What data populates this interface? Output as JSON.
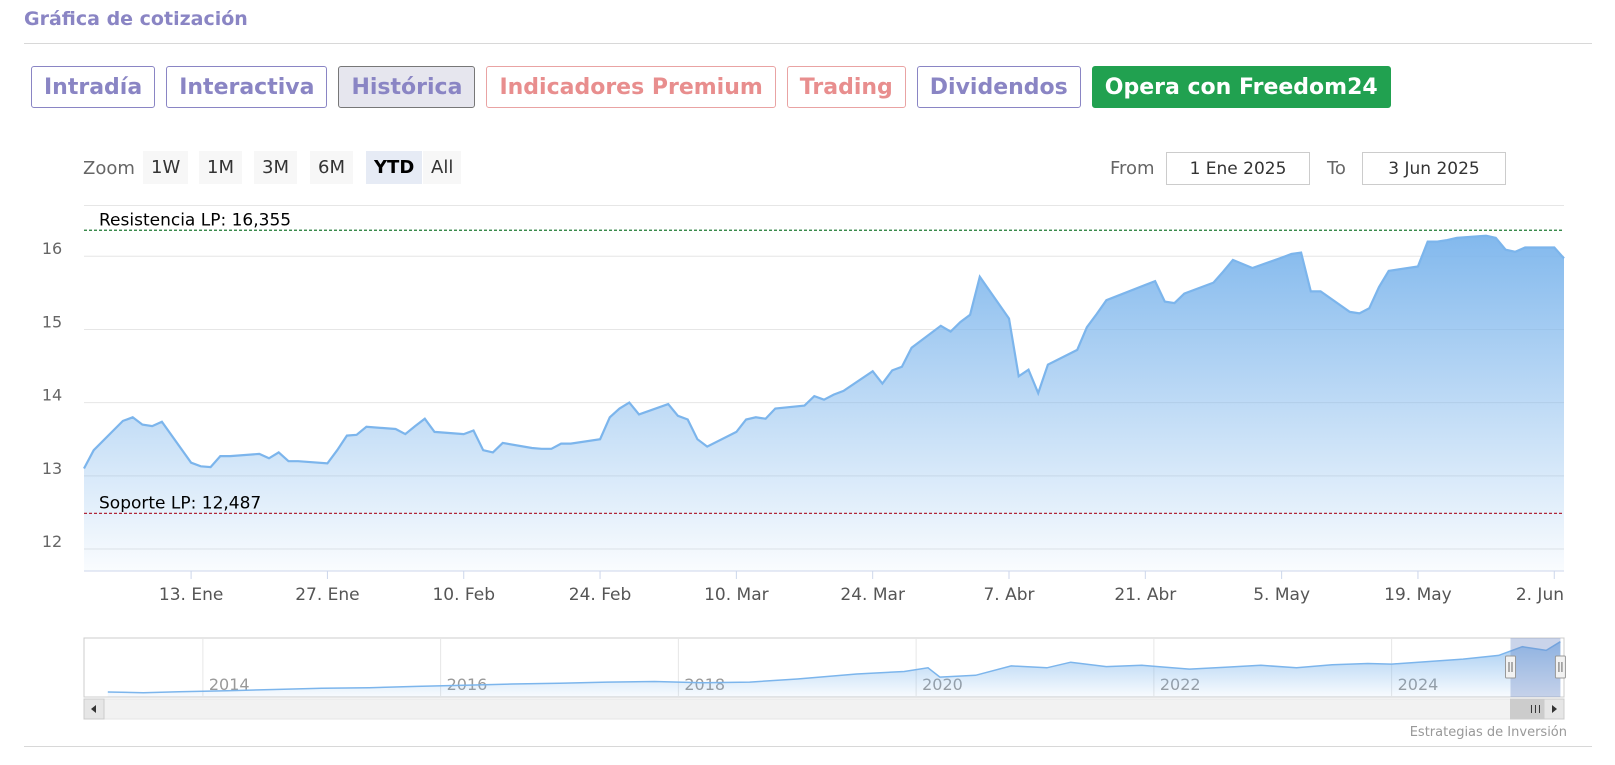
{
  "header": {
    "title": "Gráfica de cotización"
  },
  "tabs": [
    {
      "label": "Intradía",
      "style": "normal"
    },
    {
      "label": "Interactiva",
      "style": "normal"
    },
    {
      "label": "Histórica",
      "style": "active"
    },
    {
      "label": "Indicadores Premium",
      "style": "premium"
    },
    {
      "label": "Trading",
      "style": "premium"
    },
    {
      "label": "Dividendos",
      "style": "normal"
    },
    {
      "label": "Opera con Freedom24",
      "style": "cta"
    }
  ],
  "range_selector": {
    "zoom_label": "Zoom",
    "buttons": [
      "1W",
      "1M",
      "3M",
      "6M",
      "YTD",
      "All"
    ],
    "selected": "YTD",
    "from_label": "From",
    "from_value": "1 Ene 2025",
    "to_label": "To",
    "to_value": "3 Jun 2025"
  },
  "credit": "Estrategias de Inversión",
  "colors": {
    "accent": "#8a85c4",
    "cta": "#21a150",
    "premium": "#e88e8e",
    "series_line": "#7cb5ec",
    "resistance": "#1e7a33",
    "support": "#b0283a"
  },
  "chart_data": {
    "type": "area",
    "y_ticks": [
      12,
      13,
      14,
      15,
      16
    ],
    "ylim": [
      11.7,
      16.7
    ],
    "x_ticks": [
      {
        "label": "13. Ene",
        "date": "2025-01-13"
      },
      {
        "label": "27. Ene",
        "date": "2025-01-27"
      },
      {
        "label": "10. Feb",
        "date": "2025-02-10"
      },
      {
        "label": "24. Feb",
        "date": "2025-02-24"
      },
      {
        "label": "10. Mar",
        "date": "2025-03-10"
      },
      {
        "label": "24. Mar",
        "date": "2025-03-24"
      },
      {
        "label": "7. Abr",
        "date": "2025-04-07"
      },
      {
        "label": "21. Abr",
        "date": "2025-04-21"
      },
      {
        "label": "5. May",
        "date": "2025-05-05"
      },
      {
        "label": "19. May",
        "date": "2025-05-19"
      },
      {
        "label": "2. Jun",
        "date": "2025-06-02"
      }
    ],
    "xlim": [
      "2025-01-02",
      "2025-06-03"
    ],
    "grid": true,
    "series": [
      {
        "dates": [
          "2025-01-02",
          "2025-01-03",
          "2025-01-06",
          "2025-01-07",
          "2025-01-08",
          "2025-01-09",
          "2025-01-10",
          "2025-01-13",
          "2025-01-14",
          "2025-01-15",
          "2025-01-16",
          "2025-01-17",
          "2025-01-20",
          "2025-01-21",
          "2025-01-22",
          "2025-01-23",
          "2025-01-24",
          "2025-01-27",
          "2025-01-28",
          "2025-01-29",
          "2025-01-30",
          "2025-01-31",
          "2025-02-03",
          "2025-02-04",
          "2025-02-05",
          "2025-02-06",
          "2025-02-07",
          "2025-02-10",
          "2025-02-11",
          "2025-02-12",
          "2025-02-13",
          "2025-02-14",
          "2025-02-17",
          "2025-02-18",
          "2025-02-19",
          "2025-02-20",
          "2025-02-21",
          "2025-02-24",
          "2025-02-25",
          "2025-02-26",
          "2025-02-27",
          "2025-02-28",
          "2025-03-03",
          "2025-03-04",
          "2025-03-05",
          "2025-03-06",
          "2025-03-07",
          "2025-03-10",
          "2025-03-11",
          "2025-03-12",
          "2025-03-13",
          "2025-03-14",
          "2025-03-17",
          "2025-03-18",
          "2025-03-19",
          "2025-03-20",
          "2025-03-21",
          "2025-03-24",
          "2025-03-25",
          "2025-03-26",
          "2025-03-27",
          "2025-03-28",
          "2025-03-31",
          "2025-04-01",
          "2025-04-02",
          "2025-04-03",
          "2025-04-04",
          "2025-04-07",
          "2025-04-08",
          "2025-04-09",
          "2025-04-10",
          "2025-04-11",
          "2025-04-14",
          "2025-04-15",
          "2025-04-16",
          "2025-04-17",
          "2025-04-22",
          "2025-04-23",
          "2025-04-24",
          "2025-04-25",
          "2025-04-28",
          "2025-04-29",
          "2025-04-30",
          "2025-05-02",
          "2025-05-05",
          "2025-05-06",
          "2025-05-07",
          "2025-05-08",
          "2025-05-09",
          "2025-05-12",
          "2025-05-13",
          "2025-05-14",
          "2025-05-15",
          "2025-05-16",
          "2025-05-19",
          "2025-05-20",
          "2025-05-21",
          "2025-05-22",
          "2025-05-23",
          "2025-05-26",
          "2025-05-27",
          "2025-05-28",
          "2025-05-29",
          "2025-05-30",
          "2025-06-02",
          "2025-06-03"
        ],
        "values": [
          13.1,
          13.35,
          13.75,
          13.8,
          13.7,
          13.68,
          13.74,
          13.18,
          13.13,
          13.12,
          13.27,
          13.27,
          13.3,
          13.24,
          13.32,
          13.2,
          13.2,
          13.17,
          13.35,
          13.55,
          13.56,
          13.67,
          13.64,
          13.57,
          13.68,
          13.78,
          13.6,
          13.57,
          13.62,
          13.35,
          13.32,
          13.45,
          13.38,
          13.37,
          13.37,
          13.44,
          13.44,
          13.5,
          13.8,
          13.92,
          14.0,
          13.84,
          13.98,
          13.82,
          13.77,
          13.5,
          13.4,
          13.6,
          13.77,
          13.8,
          13.78,
          13.92,
          13.96,
          14.09,
          14.04,
          14.11,
          14.16,
          14.43,
          14.26,
          14.44,
          14.49,
          14.75,
          15.05,
          14.97,
          15.1,
          15.2,
          15.72,
          15.15,
          14.36,
          14.45,
          14.13,
          14.52,
          14.72,
          15.03,
          15.21,
          15.4,
          15.66,
          15.38,
          15.36,
          15.49,
          15.64,
          15.79,
          15.95,
          15.84,
          15.98,
          16.03,
          16.05,
          15.52,
          15.52,
          15.24,
          15.22,
          15.29,
          15.58,
          15.8,
          15.86,
          16.2,
          16.2,
          16.22,
          16.25,
          16.28,
          16.25,
          16.09,
          16.06,
          16.12,
          16.12,
          15.97
        ]
      }
    ],
    "reference_lines": [
      {
        "label": "Resistencia LP: 16,355",
        "value": 16.355
      },
      {
        "label": "Soporte LP: 12,487",
        "value": 12.487
      }
    ],
    "navigator": {
      "year_labels": [
        "2014",
        "2016",
        "2018",
        "2020",
        "2022",
        "2024"
      ],
      "years": [
        2014,
        2016,
        2018,
        2020,
        2022,
        2024
      ],
      "range": [
        2013.0,
        2025.45
      ],
      "values": [
        [
          2013.2,
          11.3
        ],
        [
          2013.5,
          11.2
        ],
        [
          2013.8,
          11.35
        ],
        [
          2014.2,
          11.5
        ],
        [
          2014.6,
          11.7
        ],
        [
          2015.0,
          11.9
        ],
        [
          2015.4,
          12.0
        ],
        [
          2015.8,
          12.2
        ],
        [
          2016.2,
          12.4
        ],
        [
          2016.6,
          12.6
        ],
        [
          2017.0,
          12.7
        ],
        [
          2017.4,
          12.9
        ],
        [
          2017.8,
          13.0
        ],
        [
          2018.2,
          12.8
        ],
        [
          2018.6,
          12.9
        ],
        [
          2019.0,
          13.4
        ],
        [
          2019.5,
          14.2
        ],
        [
          2019.9,
          14.6
        ],
        [
          2020.1,
          15.2
        ],
        [
          2020.2,
          13.7
        ],
        [
          2020.5,
          14.0
        ],
        [
          2020.8,
          15.5
        ],
        [
          2021.1,
          15.2
        ],
        [
          2021.3,
          16.1
        ],
        [
          2021.6,
          15.4
        ],
        [
          2021.9,
          15.6
        ],
        [
          2022.1,
          15.3
        ],
        [
          2022.3,
          15.0
        ],
        [
          2022.6,
          15.3
        ],
        [
          2022.9,
          15.6
        ],
        [
          2023.2,
          15.2
        ],
        [
          2023.5,
          15.7
        ],
        [
          2023.8,
          15.9
        ],
        [
          2024.0,
          15.8
        ],
        [
          2024.3,
          16.2
        ],
        [
          2024.6,
          16.6
        ],
        [
          2024.9,
          17.2
        ],
        [
          2025.1,
          18.6
        ],
        [
          2025.3,
          18.0
        ],
        [
          2025.42,
          19.4
        ]
      ],
      "selected": [
        2025.0,
        2025.42
      ]
    }
  }
}
